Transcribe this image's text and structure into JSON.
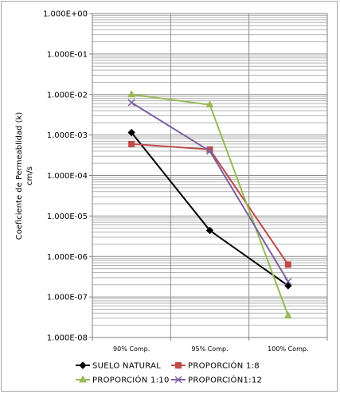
{
  "chart_data": {
    "type": "line",
    "y_scale": "log",
    "ylim": [
      1e-08,
      1
    ],
    "categories": [
      "90% Comp.",
      "95% Comp.",
      "100% Comp."
    ],
    "ylabel_lines": [
      "Coeficiente de Permeablidad (k)",
      "cm/s"
    ],
    "y_ticks": [
      "1.000E+00",
      "1.000E-01",
      "1.000E-02",
      "1.000E-03",
      "1.000E-04",
      "1.000E-05",
      "1.000E-06",
      "1.000E-07",
      "1.000E-08"
    ],
    "grid": true,
    "legend_position": "bottom",
    "series": [
      {
        "name": "SUELO NATURAL",
        "color": "#000000",
        "marker": "diamond",
        "values": [
          0.00115,
          4.4e-06,
          1.9e-07
        ]
      },
      {
        "name": "PROPORCIÓN 1:8",
        "color": "#be4b48",
        "marker": "square",
        "values": [
          0.0006,
          0.00044,
          6.3e-07
        ]
      },
      {
        "name": "PROPORCIÓN 1:10",
        "color": "#98b954",
        "marker": "triangle",
        "values": [
          0.01,
          0.0056,
          3.5e-08
        ]
      },
      {
        "name": "PROPORCIÓN1:12",
        "color": "#7d60a0",
        "marker": "x",
        "values": [
          0.0063,
          0.0004,
          2.4e-07
        ]
      }
    ]
  }
}
